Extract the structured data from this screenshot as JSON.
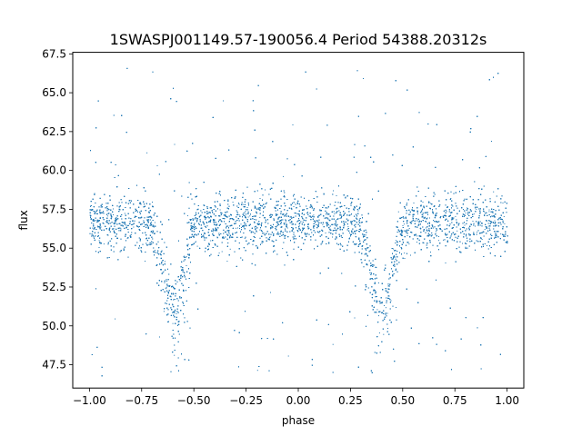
{
  "chart_data": {
    "type": "scatter",
    "title": "1SWASPJ001149.57-190056.4 Period 54388.20312s",
    "xlabel": "phase",
    "ylabel": "flux",
    "xlim": [
      -1.08,
      1.08
    ],
    "ylim": [
      46.0,
      67.6
    ],
    "xticks": [
      -1.0,
      -0.75,
      -0.5,
      -0.25,
      0.0,
      0.25,
      0.5,
      0.75,
      1.0
    ],
    "xtick_labels": [
      "−1.00",
      "−0.75",
      "−0.50",
      "−0.25",
      "0.00",
      "0.25",
      "0.50",
      "0.75",
      "1.00"
    ],
    "yticks": [
      47.5,
      50.0,
      52.5,
      55.0,
      57.5,
      60.0,
      62.5,
      65.0,
      67.5
    ],
    "ytick_labels": [
      "47.5",
      "50.0",
      "52.5",
      "55.0",
      "57.5",
      "60.0",
      "62.5",
      "65.0",
      "67.5"
    ],
    "grid": false,
    "legend": "none",
    "marker_color": "#1f77b4",
    "x_range": [
      -1.0,
      1.0
    ],
    "y_range_data": [
      46.8,
      66.6
    ],
    "baseline_flux": 56.7,
    "eclipses": [
      {
        "phase": -0.6,
        "min_flux": 51.0
      },
      {
        "phase": 0.4,
        "min_flux": 51.0
      }
    ]
  }
}
